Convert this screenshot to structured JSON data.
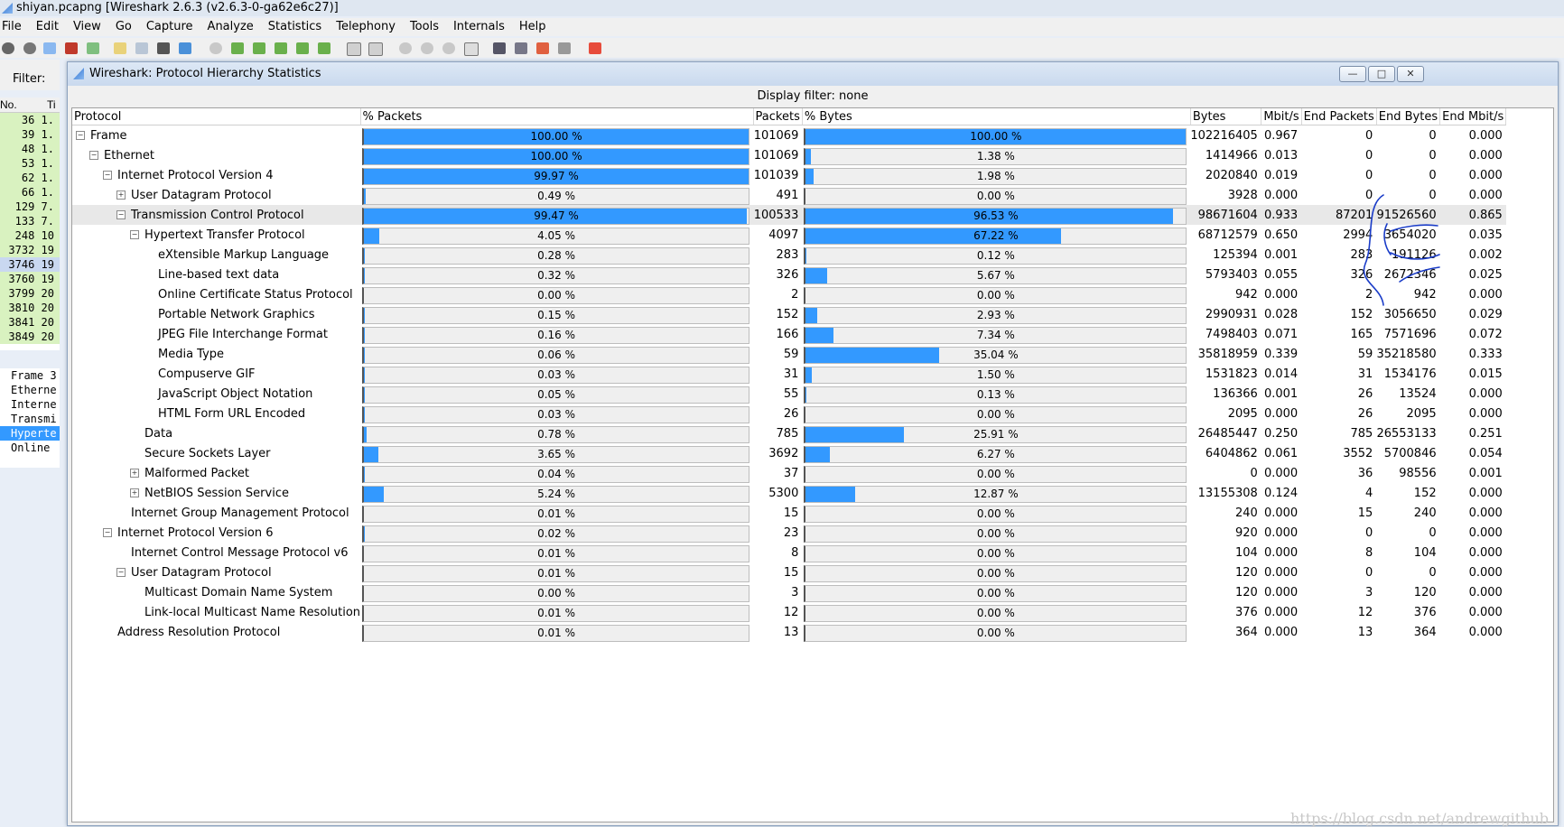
{
  "window": {
    "title": "shiyan.pcapng [Wireshark 2.6.3 (v2.6.3-0-ga62e6c27)]"
  },
  "menu": [
    "File",
    "Edit",
    "View",
    "Go",
    "Capture",
    "Analyze",
    "Statistics",
    "Telephony",
    "Tools",
    "Internals",
    "Help"
  ],
  "filter_label": "Filter:",
  "packet_list": {
    "headers": [
      "No.",
      "Ti"
    ],
    "rows": [
      [
        "36",
        "1."
      ],
      [
        "39",
        "1."
      ],
      [
        "48",
        "1."
      ],
      [
        "53",
        "1."
      ],
      [
        "62",
        "1."
      ],
      [
        "66",
        "1."
      ],
      [
        "129",
        "7."
      ],
      [
        "133",
        "7."
      ],
      [
        "248",
        "10"
      ],
      [
        "3732",
        "19"
      ],
      [
        "3746",
        "19"
      ],
      [
        "3760",
        "19"
      ],
      [
        "3799",
        "20"
      ],
      [
        "3810",
        "20"
      ],
      [
        "3841",
        "20"
      ],
      [
        "3849",
        "20"
      ]
    ]
  },
  "detail_tree": [
    "Frame 3",
    "Etherne",
    "Interne",
    "Transmi",
    "Hyperte",
    "Online"
  ],
  "dialog": {
    "title": "Wireshark: Protocol Hierarchy Statistics",
    "display_filter": "Display filter: none",
    "columns": [
      "Protocol",
      "% Packets",
      "Packets",
      "% Bytes",
      "Bytes",
      "Mbit/s",
      "End Packets",
      "End Bytes",
      "End Mbit/s"
    ],
    "rows": [
      {
        "name": "Frame",
        "level": 0,
        "tog": "-",
        "pkt_pct": "100.00 %",
        "pkt_frac": 1.0,
        "packets": "101069",
        "byte_pct": "100.00 %",
        "byte_frac": 1.0,
        "bytes": "102216405",
        "mbit": "0.967",
        "end_packets": "0",
        "end_bytes": "0",
        "end_mbit": "0.000"
      },
      {
        "name": "Ethernet",
        "level": 1,
        "tog": "-",
        "pkt_pct": "100.00 %",
        "pkt_frac": 1.0,
        "packets": "101069",
        "byte_pct": "1.38 %",
        "byte_frac": 0.0138,
        "bytes": "1414966",
        "mbit": "0.013",
        "end_packets": "0",
        "end_bytes": "0",
        "end_mbit": "0.000"
      },
      {
        "name": "Internet Protocol Version 4",
        "level": 2,
        "tog": "-",
        "pkt_pct": "99.97 %",
        "pkt_frac": 0.9997,
        "packets": "101039",
        "byte_pct": "1.98 %",
        "byte_frac": 0.0198,
        "bytes": "2020840",
        "mbit": "0.019",
        "end_packets": "0",
        "end_bytes": "0",
        "end_mbit": "0.000"
      },
      {
        "name": "User Datagram Protocol",
        "level": 3,
        "tog": "+",
        "pkt_pct": "0.49 %",
        "pkt_frac": 0.0049,
        "packets": "491",
        "byte_pct": "0.00 %",
        "byte_frac": 0.0,
        "bytes": "3928",
        "mbit": "0.000",
        "end_packets": "0",
        "end_bytes": "0",
        "end_mbit": "0.000"
      },
      {
        "name": "Transmission Control Protocol",
        "level": 3,
        "tog": "-",
        "pkt_pct": "99.47 %",
        "pkt_frac": 0.9947,
        "packets": "100533",
        "byte_pct": "96.53 %",
        "byte_frac": 0.9653,
        "bytes": "98671604",
        "mbit": "0.933",
        "end_packets": "87201",
        "end_bytes": "91526560",
        "end_mbit": "0.865",
        "selected": true
      },
      {
        "name": "Hypertext Transfer Protocol",
        "level": 4,
        "tog": "-",
        "pkt_pct": "4.05 %",
        "pkt_frac": 0.0405,
        "packets": "4097",
        "byte_pct": "67.22 %",
        "byte_frac": 0.6722,
        "bytes": "68712579",
        "mbit": "0.650",
        "end_packets": "2994",
        "end_bytes": "3654020",
        "end_mbit": "0.035"
      },
      {
        "name": "eXtensible Markup Language",
        "level": 5,
        "tog": "",
        "pkt_pct": "0.28 %",
        "pkt_frac": 0.0028,
        "packets": "283",
        "byte_pct": "0.12 %",
        "byte_frac": 0.0012,
        "bytes": "125394",
        "mbit": "0.001",
        "end_packets": "283",
        "end_bytes": "191126",
        "end_mbit": "0.002"
      },
      {
        "name": "Line-based text data",
        "level": 5,
        "tog": "",
        "pkt_pct": "0.32 %",
        "pkt_frac": 0.0032,
        "packets": "326",
        "byte_pct": "5.67 %",
        "byte_frac": 0.0567,
        "bytes": "5793403",
        "mbit": "0.055",
        "end_packets": "326",
        "end_bytes": "2672346",
        "end_mbit": "0.025"
      },
      {
        "name": "Online Certificate Status Protocol",
        "level": 5,
        "tog": "",
        "pkt_pct": "0.00 %",
        "pkt_frac": 0.0,
        "packets": "2",
        "byte_pct": "0.00 %",
        "byte_frac": 0.0,
        "bytes": "942",
        "mbit": "0.000",
        "end_packets": "2",
        "end_bytes": "942",
        "end_mbit": "0.000"
      },
      {
        "name": "Portable Network Graphics",
        "level": 5,
        "tog": "",
        "pkt_pct": "0.15 %",
        "pkt_frac": 0.0015,
        "packets": "152",
        "byte_pct": "2.93 %",
        "byte_frac": 0.0293,
        "bytes": "2990931",
        "mbit": "0.028",
        "end_packets": "152",
        "end_bytes": "3056650",
        "end_mbit": "0.029"
      },
      {
        "name": "JPEG File Interchange Format",
        "level": 5,
        "tog": "",
        "pkt_pct": "0.16 %",
        "pkt_frac": 0.0016,
        "packets": "166",
        "byte_pct": "7.34 %",
        "byte_frac": 0.0734,
        "bytes": "7498403",
        "mbit": "0.071",
        "end_packets": "165",
        "end_bytes": "7571696",
        "end_mbit": "0.072"
      },
      {
        "name": "Media Type",
        "level": 5,
        "tog": "",
        "pkt_pct": "0.06 %",
        "pkt_frac": 0.0006,
        "packets": "59",
        "byte_pct": "35.04 %",
        "byte_frac": 0.3504,
        "bytes": "35818959",
        "mbit": "0.339",
        "end_packets": "59",
        "end_bytes": "35218580",
        "end_mbit": "0.333"
      },
      {
        "name": "Compuserve GIF",
        "level": 5,
        "tog": "",
        "pkt_pct": "0.03 %",
        "pkt_frac": 0.0003,
        "packets": "31",
        "byte_pct": "1.50 %",
        "byte_frac": 0.015,
        "bytes": "1531823",
        "mbit": "0.014",
        "end_packets": "31",
        "end_bytes": "1534176",
        "end_mbit": "0.015"
      },
      {
        "name": "JavaScript Object Notation",
        "level": 5,
        "tog": "",
        "pkt_pct": "0.05 %",
        "pkt_frac": 0.0005,
        "packets": "55",
        "byte_pct": "0.13 %",
        "byte_frac": 0.0013,
        "bytes": "136366",
        "mbit": "0.001",
        "end_packets": "26",
        "end_bytes": "13524",
        "end_mbit": "0.000"
      },
      {
        "name": "HTML Form URL Encoded",
        "level": 5,
        "tog": "",
        "pkt_pct": "0.03 %",
        "pkt_frac": 0.0003,
        "packets": "26",
        "byte_pct": "0.00 %",
        "byte_frac": 0.0,
        "bytes": "2095",
        "mbit": "0.000",
        "end_packets": "26",
        "end_bytes": "2095",
        "end_mbit": "0.000"
      },
      {
        "name": "Data",
        "level": 4,
        "tog": "",
        "pkt_pct": "0.78 %",
        "pkt_frac": 0.0078,
        "packets": "785",
        "byte_pct": "25.91 %",
        "byte_frac": 0.2591,
        "bytes": "26485447",
        "mbit": "0.250",
        "end_packets": "785",
        "end_bytes": "26553133",
        "end_mbit": "0.251"
      },
      {
        "name": "Secure Sockets Layer",
        "level": 4,
        "tog": "",
        "pkt_pct": "3.65 %",
        "pkt_frac": 0.0365,
        "packets": "3692",
        "byte_pct": "6.27 %",
        "byte_frac": 0.0627,
        "bytes": "6404862",
        "mbit": "0.061",
        "end_packets": "3552",
        "end_bytes": "5700846",
        "end_mbit": "0.054"
      },
      {
        "name": "Malformed Packet",
        "level": 4,
        "tog": "+",
        "pkt_pct": "0.04 %",
        "pkt_frac": 0.0004,
        "packets": "37",
        "byte_pct": "0.00 %",
        "byte_frac": 0.0,
        "bytes": "0",
        "mbit": "0.000",
        "end_packets": "36",
        "end_bytes": "98556",
        "end_mbit": "0.001"
      },
      {
        "name": "NetBIOS Session Service",
        "level": 4,
        "tog": "+",
        "pkt_pct": "5.24 %",
        "pkt_frac": 0.0524,
        "packets": "5300",
        "byte_pct": "12.87 %",
        "byte_frac": 0.1287,
        "bytes": "13155308",
        "mbit": "0.124",
        "end_packets": "4",
        "end_bytes": "152",
        "end_mbit": "0.000"
      },
      {
        "name": "Internet Group Management Protocol",
        "level": 3,
        "tog": "",
        "pkt_pct": "0.01 %",
        "pkt_frac": 0.0001,
        "packets": "15",
        "byte_pct": "0.00 %",
        "byte_frac": 0.0,
        "bytes": "240",
        "mbit": "0.000",
        "end_packets": "15",
        "end_bytes": "240",
        "end_mbit": "0.000"
      },
      {
        "name": "Internet Protocol Version 6",
        "level": 2,
        "tog": "-",
        "pkt_pct": "0.02 %",
        "pkt_frac": 0.0002,
        "packets": "23",
        "byte_pct": "0.00 %",
        "byte_frac": 0.0,
        "bytes": "920",
        "mbit": "0.000",
        "end_packets": "0",
        "end_bytes": "0",
        "end_mbit": "0.000"
      },
      {
        "name": "Internet Control Message Protocol v6",
        "level": 3,
        "tog": "",
        "pkt_pct": "0.01 %",
        "pkt_frac": 0.0001,
        "packets": "8",
        "byte_pct": "0.00 %",
        "byte_frac": 0.0,
        "bytes": "104",
        "mbit": "0.000",
        "end_packets": "8",
        "end_bytes": "104",
        "end_mbit": "0.000"
      },
      {
        "name": "User Datagram Protocol",
        "level": 3,
        "tog": "-",
        "pkt_pct": "0.01 %",
        "pkt_frac": 0.0001,
        "packets": "15",
        "byte_pct": "0.00 %",
        "byte_frac": 0.0,
        "bytes": "120",
        "mbit": "0.000",
        "end_packets": "0",
        "end_bytes": "0",
        "end_mbit": "0.000"
      },
      {
        "name": "Multicast Domain Name System",
        "level": 4,
        "tog": "",
        "pkt_pct": "0.00 %",
        "pkt_frac": 0.0,
        "packets": "3",
        "byte_pct": "0.00 %",
        "byte_frac": 0.0,
        "bytes": "120",
        "mbit": "0.000",
        "end_packets": "3",
        "end_bytes": "120",
        "end_mbit": "0.000"
      },
      {
        "name": "Link-local Multicast Name Resolution",
        "level": 4,
        "tog": "",
        "pkt_pct": "0.01 %",
        "pkt_frac": 0.0001,
        "packets": "12",
        "byte_pct": "0.00 %",
        "byte_frac": 0.0,
        "bytes": "376",
        "mbit": "0.000",
        "end_packets": "12",
        "end_bytes": "376",
        "end_mbit": "0.000"
      },
      {
        "name": "Address Resolution Protocol",
        "level": 2,
        "tog": "",
        "pkt_pct": "0.01 %",
        "pkt_frac": 0.0001,
        "packets": "13",
        "byte_pct": "0.00 %",
        "byte_frac": 0.0,
        "bytes": "364",
        "mbit": "0.000",
        "end_packets": "13",
        "end_bytes": "364",
        "end_mbit": "0.000"
      }
    ]
  },
  "watermark": "https://blog.csdn.net/andrewgithub",
  "colors": {
    "bar_fill": "#3399ff",
    "selected_row": "#e8e8e8",
    "packet_row": "#d9f2c0",
    "annotation_ink": "#1a3cc8"
  }
}
